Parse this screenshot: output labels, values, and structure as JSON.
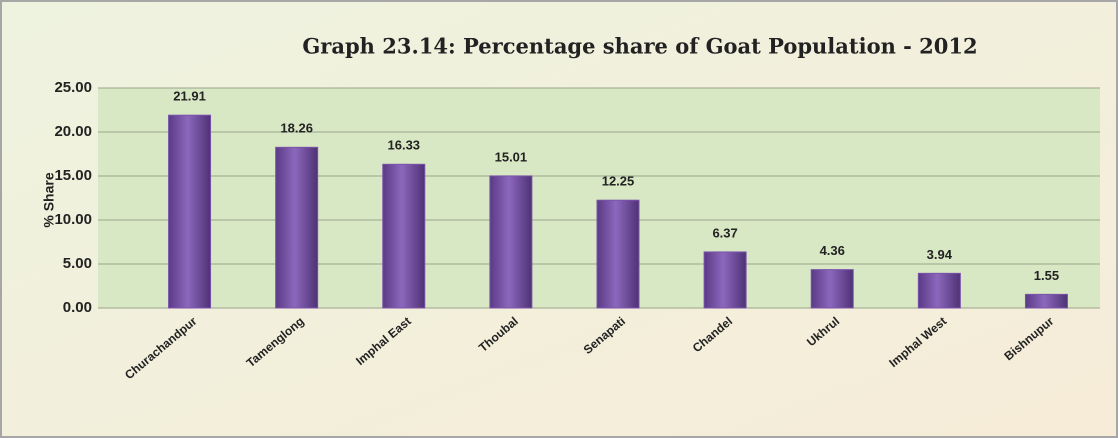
{
  "chart_data": {
    "type": "bar",
    "title": "Graph 23.14: Percentage share of Goat Population - 2012",
    "y_label": "% Share",
    "categories": [
      "Churachandpur",
      "Tamenglong",
      "Imphal East",
      "Thoubal",
      "Senapati",
      "Chandel",
      "Ukhrul",
      "Imphal West",
      "Bishnupur"
    ],
    "values": [
      21.91,
      18.26,
      16.33,
      15.01,
      12.25,
      6.37,
      4.36,
      3.94,
      1.55
    ],
    "color": "#7b52ab",
    "ylim": [
      0,
      25
    ],
    "yticks": [
      {
        "value": 0,
        "label": "0.00"
      },
      {
        "value": 5,
        "label": "5.00"
      },
      {
        "value": 10,
        "label": "10.00"
      },
      {
        "value": 15,
        "label": "15.00"
      },
      {
        "value": 20,
        "label": "20.00"
      },
      {
        "value": 25,
        "label": "25.00"
      }
    ],
    "grid": true
  }
}
